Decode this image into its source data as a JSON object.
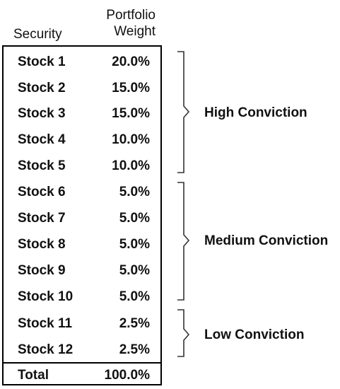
{
  "header": {
    "security": "Security",
    "weight_line1": "Portfolio",
    "weight_line2": "Weight"
  },
  "rows": [
    {
      "security": "Stock 1",
      "weight": "20.0%"
    },
    {
      "security": "Stock 2",
      "weight": "15.0%"
    },
    {
      "security": "Stock 3",
      "weight": "15.0%"
    },
    {
      "security": "Stock 4",
      "weight": "10.0%"
    },
    {
      "security": "Stock 5",
      "weight": "10.0%"
    },
    {
      "security": "Stock 6",
      "weight": "5.0%"
    },
    {
      "security": "Stock 7",
      "weight": "5.0%"
    },
    {
      "security": "Stock 8",
      "weight": "5.0%"
    },
    {
      "security": "Stock 9",
      "weight": "5.0%"
    },
    {
      "security": "Stock 10",
      "weight": "5.0%"
    },
    {
      "security": "Stock 11",
      "weight": "2.5%"
    },
    {
      "security": "Stock 12",
      "weight": "2.5%"
    }
  ],
  "total": {
    "label": "Total",
    "weight": "100.0%"
  },
  "groups": [
    {
      "label": "High Conviction"
    },
    {
      "label": "Medium Conviction"
    },
    {
      "label": "Low Conviction"
    }
  ]
}
